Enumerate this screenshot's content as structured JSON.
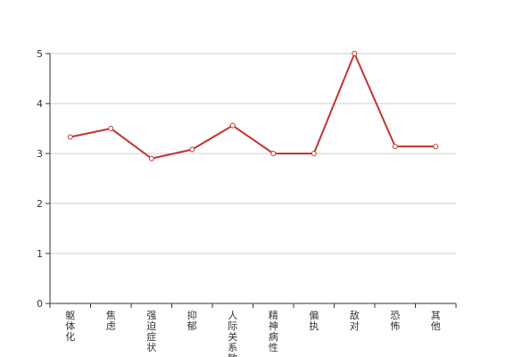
{
  "chart_data": {
    "type": "line",
    "categories": [
      "躯体化",
      "焦虑",
      "强迫症状",
      "抑郁",
      "人际关系敏感",
      "精神病性",
      "偏执",
      "敌对",
      "恐怖",
      "其他"
    ],
    "series": [
      {
        "values": [
          3.33,
          3.5,
          2.9,
          3.08,
          3.56,
          3.0,
          3.0,
          5.0,
          3.14,
          3.14
        ]
      }
    ],
    "y_ticks": [
      "0",
      "1",
      "2",
      "3",
      "4",
      "5"
    ],
    "ylim": [
      0,
      5
    ],
    "grid": true,
    "colors": {
      "line": "#c23531",
      "grid": "#cccccc",
      "axis": "#333333",
      "point_fill": "#ffffff"
    }
  }
}
